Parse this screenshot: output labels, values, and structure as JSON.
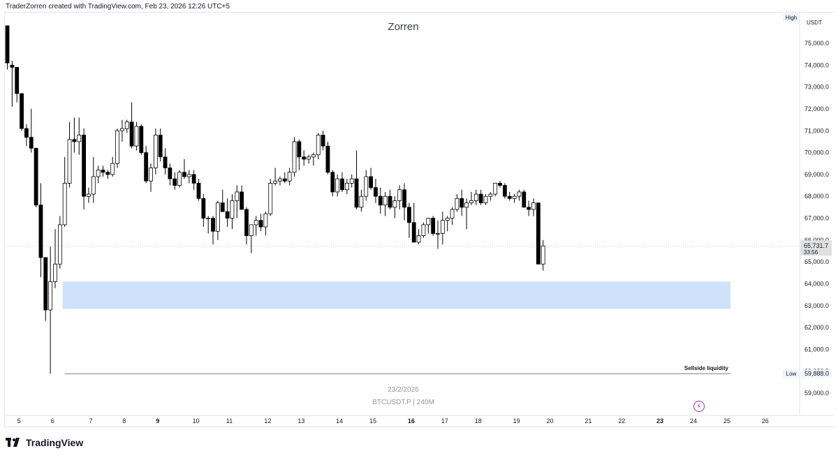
{
  "header": {
    "attribution": "TraderZorren created with TradingView.com, Feb 23, 2026 12:26 UTC+5"
  },
  "watermark": {
    "title": "Zorren",
    "date": "23/2/2026",
    "symbol": "BTCUSDT.P",
    "separator": "|",
    "interval": "240M"
  },
  "footer": {
    "brand": "TradingView"
  },
  "price_scale": {
    "currency": "USDT",
    "high_label": "High",
    "low_label": "Low",
    "low_value": "59,888.0",
    "last_price": "65,731.7",
    "countdown": "33:56"
  },
  "zone_label": "Sellside liquidity",
  "colors": {
    "up_body": "#ffffff",
    "down_body": "#000000",
    "wick": "#000000",
    "zone": "#cfe2fb",
    "axis_text": "#131722",
    "grid": "#e0e3eb",
    "last_price_tag": "#e0e0e0"
  },
  "icons": {
    "alert": "lightning-bolt-icon",
    "brand": "tradingview-logo-icon"
  },
  "chart_data": {
    "type": "candlestick",
    "title": "Zorren",
    "symbol": "BTCUSDT.P",
    "interval": "240M",
    "quote_currency": "USDT",
    "y_range": [
      58300,
      75800
    ],
    "y_ticks": [
      59000,
      60000,
      61000,
      62000,
      63000,
      64000,
      65000,
      66000,
      67000,
      68000,
      69000,
      70000,
      71000,
      72000,
      73000,
      74000,
      75000
    ],
    "y_tick_labels": [
      "59,000.0",
      "60,000.0",
      "61,000.0",
      "62,000.0",
      "63,000.0",
      "64,000.0",
      "65,000.0",
      "66,000.0",
      "67,000.0",
      "68,000.0",
      "69,000.0",
      "70,000.0",
      "71,000.0",
      "72,000.0",
      "73,000.0",
      "74,000.0",
      "75,000.0"
    ],
    "x_ticks": [
      {
        "label": "5",
        "index": 2,
        "bold": false
      },
      {
        "label": "6",
        "index": 9,
        "bold": false
      },
      {
        "label": "7",
        "index": 17,
        "bold": false
      },
      {
        "label": "8",
        "index": 24,
        "bold": false
      },
      {
        "label": "9",
        "index": 31,
        "bold": true
      },
      {
        "label": "10",
        "index": 39,
        "bold": false
      },
      {
        "label": "11",
        "index": 46,
        "bold": false
      },
      {
        "label": "12",
        "index": 54,
        "bold": false
      },
      {
        "label": "13",
        "index": 61,
        "bold": false
      },
      {
        "label": "14",
        "index": 69,
        "bold": false
      },
      {
        "label": "15",
        "index": 76,
        "bold": false
      },
      {
        "label": "16",
        "index": 84,
        "bold": true
      },
      {
        "label": "17",
        "index": 91,
        "bold": false
      },
      {
        "label": "18",
        "index": 98,
        "bold": false
      },
      {
        "label": "19",
        "index": 106,
        "bold": false
      },
      {
        "label": "20",
        "index": 113,
        "bold": false
      },
      {
        "label": "21",
        "index": 121,
        "bold": false
      },
      {
        "label": "22",
        "index": 128,
        "bold": false
      },
      {
        "label": "23",
        "index": 136,
        "bold": true
      },
      {
        "label": "24",
        "index": 143,
        "bold": false
      },
      {
        "label": "25",
        "index": 150,
        "bold": false
      },
      {
        "label": "26",
        "index": 158,
        "bold": false
      }
    ],
    "candles": [
      {
        "o": 75800,
        "h": 75800,
        "l": 73800,
        "c": 74100
      },
      {
        "o": 74000,
        "h": 74200,
        "l": 72100,
        "c": 73900
      },
      {
        "o": 73900,
        "h": 73900,
        "l": 72300,
        "c": 72700
      },
      {
        "o": 72700,
        "h": 72700,
        "l": 71000,
        "c": 71100
      },
      {
        "o": 71100,
        "h": 71300,
        "l": 70300,
        "c": 70700
      },
      {
        "o": 70700,
        "h": 72000,
        "l": 70000,
        "c": 70200
      },
      {
        "o": 70200,
        "h": 70200,
        "l": 67500,
        "c": 67600
      },
      {
        "o": 67600,
        "h": 68600,
        "l": 64300,
        "c": 65200
      },
      {
        "o": 65200,
        "h": 65200,
        "l": 62300,
        "c": 62800
      },
      {
        "o": 62800,
        "h": 65700,
        "l": 59888,
        "c": 64100
      },
      {
        "o": 64100,
        "h": 66500,
        "l": 63800,
        "c": 64900
      },
      {
        "o": 64900,
        "h": 67100,
        "l": 64700,
        "c": 66700
      },
      {
        "o": 66700,
        "h": 69800,
        "l": 66600,
        "c": 68600
      },
      {
        "o": 68600,
        "h": 71400,
        "l": 68400,
        "c": 70600
      },
      {
        "o": 70600,
        "h": 71600,
        "l": 70000,
        "c": 70500
      },
      {
        "o": 70500,
        "h": 71600,
        "l": 69900,
        "c": 70800
      },
      {
        "o": 70800,
        "h": 71100,
        "l": 67400,
        "c": 68000
      },
      {
        "o": 68000,
        "h": 68400,
        "l": 67700,
        "c": 68100
      },
      {
        "o": 68100,
        "h": 69800,
        "l": 67700,
        "c": 68900
      },
      {
        "o": 68900,
        "h": 69400,
        "l": 68600,
        "c": 69200
      },
      {
        "o": 69200,
        "h": 69400,
        "l": 68900,
        "c": 69100
      },
      {
        "o": 69100,
        "h": 69200,
        "l": 68800,
        "c": 69000
      },
      {
        "o": 69000,
        "h": 69800,
        "l": 68900,
        "c": 69500
      },
      {
        "o": 69500,
        "h": 71100,
        "l": 69300,
        "c": 71000
      },
      {
        "o": 71000,
        "h": 71500,
        "l": 70500,
        "c": 71100
      },
      {
        "o": 71100,
        "h": 71500,
        "l": 70900,
        "c": 71400
      },
      {
        "o": 71400,
        "h": 72300,
        "l": 70200,
        "c": 70300
      },
      {
        "o": 70300,
        "h": 71400,
        "l": 70100,
        "c": 71200
      },
      {
        "o": 71200,
        "h": 71300,
        "l": 69900,
        "c": 70000
      },
      {
        "o": 70000,
        "h": 70300,
        "l": 68600,
        "c": 68700
      },
      {
        "o": 68700,
        "h": 69500,
        "l": 68200,
        "c": 69300
      },
      {
        "o": 69300,
        "h": 71100,
        "l": 69000,
        "c": 70800
      },
      {
        "o": 70800,
        "h": 71100,
        "l": 69600,
        "c": 69800
      },
      {
        "o": 69800,
        "h": 70200,
        "l": 69000,
        "c": 69300
      },
      {
        "o": 69300,
        "h": 69500,
        "l": 68500,
        "c": 68800
      },
      {
        "o": 68800,
        "h": 69100,
        "l": 68300,
        "c": 68500
      },
      {
        "o": 68500,
        "h": 69200,
        "l": 68400,
        "c": 69100
      },
      {
        "o": 69100,
        "h": 69700,
        "l": 68800,
        "c": 68900
      },
      {
        "o": 68900,
        "h": 69200,
        "l": 68600,
        "c": 69000
      },
      {
        "o": 69000,
        "h": 69200,
        "l": 68300,
        "c": 68600
      },
      {
        "o": 68600,
        "h": 68800,
        "l": 67800,
        "c": 67900
      },
      {
        "o": 67900,
        "h": 68100,
        "l": 66600,
        "c": 67000
      },
      {
        "o": 67000,
        "h": 67100,
        "l": 66300,
        "c": 67000
      },
      {
        "o": 67000,
        "h": 67100,
        "l": 65800,
        "c": 66400
      },
      {
        "o": 66400,
        "h": 67800,
        "l": 66000,
        "c": 67700
      },
      {
        "o": 67700,
        "h": 68300,
        "l": 67300,
        "c": 67300
      },
      {
        "o": 67300,
        "h": 67900,
        "l": 66600,
        "c": 67000
      },
      {
        "o": 67000,
        "h": 68100,
        "l": 66500,
        "c": 67800
      },
      {
        "o": 67800,
        "h": 68500,
        "l": 67000,
        "c": 68200
      },
      {
        "o": 68200,
        "h": 68500,
        "l": 67500,
        "c": 67400
      },
      {
        "o": 67400,
        "h": 67500,
        "l": 65800,
        "c": 66200
      },
      {
        "o": 66200,
        "h": 66700,
        "l": 65400,
        "c": 66700
      },
      {
        "o": 66700,
        "h": 67100,
        "l": 66200,
        "c": 66900
      },
      {
        "o": 66900,
        "h": 67200,
        "l": 66400,
        "c": 66600
      },
      {
        "o": 66600,
        "h": 67300,
        "l": 66200,
        "c": 67200
      },
      {
        "o": 67200,
        "h": 68800,
        "l": 67100,
        "c": 68600
      },
      {
        "o": 68600,
        "h": 69300,
        "l": 68500,
        "c": 68700
      },
      {
        "o": 68700,
        "h": 68900,
        "l": 68500,
        "c": 68800
      },
      {
        "o": 68800,
        "h": 69100,
        "l": 68600,
        "c": 68700
      },
      {
        "o": 68700,
        "h": 69300,
        "l": 68500,
        "c": 69100
      },
      {
        "o": 69100,
        "h": 70700,
        "l": 68900,
        "c": 70500
      },
      {
        "o": 70500,
        "h": 70600,
        "l": 69200,
        "c": 69800
      },
      {
        "o": 69800,
        "h": 70100,
        "l": 69400,
        "c": 69700
      },
      {
        "o": 69700,
        "h": 69900,
        "l": 69500,
        "c": 69800
      },
      {
        "o": 69800,
        "h": 70000,
        "l": 69400,
        "c": 69900
      },
      {
        "o": 69900,
        "h": 70900,
        "l": 69700,
        "c": 70800
      },
      {
        "o": 70800,
        "h": 71000,
        "l": 70100,
        "c": 70300
      },
      {
        "o": 70300,
        "h": 70500,
        "l": 69000,
        "c": 69100
      },
      {
        "o": 69100,
        "h": 69200,
        "l": 68000,
        "c": 68200
      },
      {
        "o": 68200,
        "h": 69000,
        "l": 68000,
        "c": 68800
      },
      {
        "o": 68800,
        "h": 69100,
        "l": 68200,
        "c": 68300
      },
      {
        "o": 68300,
        "h": 68800,
        "l": 68100,
        "c": 68600
      },
      {
        "o": 68600,
        "h": 69000,
        "l": 68400,
        "c": 68800
      },
      {
        "o": 68800,
        "h": 70100,
        "l": 67400,
        "c": 67500
      },
      {
        "o": 67500,
        "h": 68300,
        "l": 67300,
        "c": 68000
      },
      {
        "o": 68000,
        "h": 69200,
        "l": 67800,
        "c": 68900
      },
      {
        "o": 68900,
        "h": 69300,
        "l": 68300,
        "c": 68400
      },
      {
        "o": 68400,
        "h": 68800,
        "l": 67700,
        "c": 68000
      },
      {
        "o": 68000,
        "h": 68400,
        "l": 67200,
        "c": 67600
      },
      {
        "o": 67600,
        "h": 68200,
        "l": 67100,
        "c": 68000
      },
      {
        "o": 68000,
        "h": 68300,
        "l": 67400,
        "c": 67500
      },
      {
        "o": 67500,
        "h": 68000,
        "l": 67000,
        "c": 67800
      },
      {
        "o": 67800,
        "h": 68500,
        "l": 67400,
        "c": 68300
      },
      {
        "o": 68300,
        "h": 68600,
        "l": 66900,
        "c": 67500
      },
      {
        "o": 67500,
        "h": 67700,
        "l": 66100,
        "c": 66800
      },
      {
        "o": 66800,
        "h": 67700,
        "l": 66000,
        "c": 65900
      },
      {
        "o": 65900,
        "h": 66500,
        "l": 65800,
        "c": 66200
      },
      {
        "o": 66200,
        "h": 66800,
        "l": 66100,
        "c": 66700
      },
      {
        "o": 66700,
        "h": 67000,
        "l": 66300,
        "c": 67000
      },
      {
        "o": 67000,
        "h": 67100,
        "l": 66200,
        "c": 66300
      },
      {
        "o": 66300,
        "h": 66900,
        "l": 65600,
        "c": 66300
      },
      {
        "o": 66300,
        "h": 67300,
        "l": 65800,
        "c": 66900
      },
      {
        "o": 66900,
        "h": 67100,
        "l": 66400,
        "c": 67000
      },
      {
        "o": 67000,
        "h": 67500,
        "l": 66700,
        "c": 67400
      },
      {
        "o": 67400,
        "h": 68100,
        "l": 67300,
        "c": 67900
      },
      {
        "o": 67900,
        "h": 68300,
        "l": 67100,
        "c": 67500
      },
      {
        "o": 67500,
        "h": 67900,
        "l": 66500,
        "c": 67700
      },
      {
        "o": 67700,
        "h": 68200,
        "l": 67600,
        "c": 67800
      },
      {
        "o": 67800,
        "h": 68300,
        "l": 67600,
        "c": 68100
      },
      {
        "o": 68100,
        "h": 68300,
        "l": 67600,
        "c": 67700
      },
      {
        "o": 67700,
        "h": 68100,
        "l": 67600,
        "c": 68000
      },
      {
        "o": 68000,
        "h": 68200,
        "l": 67800,
        "c": 68100
      },
      {
        "o": 68100,
        "h": 68600,
        "l": 68000,
        "c": 68600
      },
      {
        "o": 68600,
        "h": 68700,
        "l": 68400,
        "c": 68500
      },
      {
        "o": 68500,
        "h": 68600,
        "l": 67900,
        "c": 68000
      },
      {
        "o": 68000,
        "h": 68200,
        "l": 67800,
        "c": 67900
      },
      {
        "o": 67900,
        "h": 68100,
        "l": 67700,
        "c": 68000
      },
      {
        "o": 68000,
        "h": 68300,
        "l": 67800,
        "c": 68200
      },
      {
        "o": 68200,
        "h": 68300,
        "l": 67500,
        "c": 67500
      },
      {
        "o": 67500,
        "h": 67800,
        "l": 67100,
        "c": 67400
      },
      {
        "o": 67400,
        "h": 67900,
        "l": 67100,
        "c": 67700
      },
      {
        "o": 67700,
        "h": 67700,
        "l": 64900,
        "c": 64900
      },
      {
        "o": 64900,
        "h": 66000,
        "l": 64600,
        "c": 65731.7
      }
    ],
    "candle_step_px": 6.85,
    "liquidity_zone": {
      "from": 62850,
      "to": 64100,
      "label": "Sellside liquidity"
    },
    "sellside_liquidity_level": 59888,
    "last_price": 65731.7
  }
}
